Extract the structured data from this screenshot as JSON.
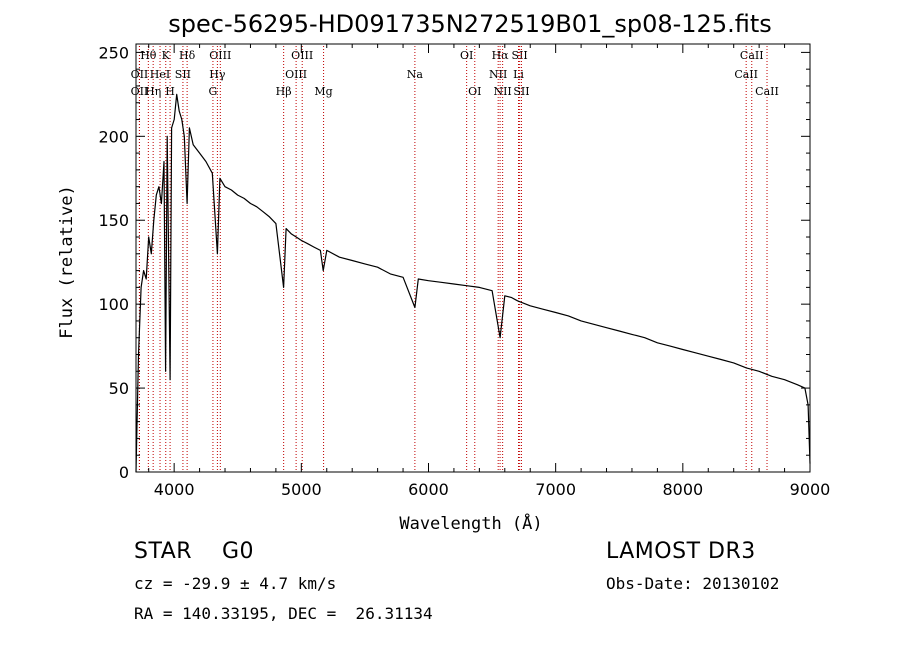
{
  "chart_data": {
    "type": "line",
    "title": "spec-56295-HD091735N272519B01_sp08-125.fits",
    "xlabel": "Wavelength (Å)",
    "ylabel": "Flux (relative)",
    "xlim": [
      3700,
      9000
    ],
    "ylim": [
      0,
      255
    ],
    "xticks": [
      4000,
      5000,
      6000,
      7000,
      8000,
      9000
    ],
    "yticks": [
      0,
      50,
      100,
      150,
      200,
      250
    ],
    "grid": false,
    "series": [
      {
        "name": "flux",
        "x": [
          3700,
          3720,
          3740,
          3760,
          3780,
          3800,
          3820,
          3840,
          3860,
          3880,
          3900,
          3920,
          3933,
          3945,
          3968,
          3980,
          4000,
          4020,
          4040,
          4060,
          4080,
          4102,
          4120,
          4150,
          4200,
          4250,
          4300,
          4340,
          4360,
          4400,
          4450,
          4500,
          4550,
          4600,
          4650,
          4700,
          4750,
          4800,
          4861,
          4880,
          4920,
          4960,
          5000,
          5050,
          5100,
          5150,
          5172,
          5200,
          5300,
          5400,
          5500,
          5600,
          5700,
          5800,
          5893,
          5920,
          6000,
          6100,
          6200,
          6300,
          6400,
          6500,
          6563,
          6600,
          6650,
          6700,
          6800,
          6900,
          7000,
          7100,
          7200,
          7300,
          7400,
          7500,
          7600,
          7700,
          7800,
          7900,
          8000,
          8100,
          8200,
          8300,
          8400,
          8500,
          8600,
          8700,
          8800,
          8900,
          8960,
          8985,
          9000
        ],
        "y": [
          0,
          70,
          110,
          120,
          115,
          140,
          130,
          150,
          165,
          170,
          160,
          185,
          60,
          200,
          55,
          205,
          210,
          225,
          215,
          210,
          200,
          160,
          205,
          195,
          190,
          185,
          178,
          130,
          175,
          170,
          168,
          165,
          163,
          160,
          158,
          155,
          152,
          148,
          110,
          145,
          142,
          140,
          138,
          136,
          134,
          132,
          120,
          132,
          128,
          126,
          124,
          122,
          118,
          116,
          98,
          115,
          114,
          113,
          112,
          111,
          110,
          108,
          80,
          105,
          104,
          102,
          99,
          97,
          95,
          93,
          90,
          88,
          86,
          84,
          82,
          80,
          77,
          75,
          73,
          71,
          69,
          67,
          65,
          62,
          60,
          57,
          55,
          52,
          50,
          40,
          5
        ]
      }
    ],
    "lines": [
      {
        "label": "Hθ",
        "x": 3797,
        "row": 0
      },
      {
        "label": "K",
        "x": 3934,
        "row": 0
      },
      {
        "label": "Hδ",
        "x": 4102,
        "row": 0
      },
      {
        "label": "OIII",
        "x": 4363,
        "row": 0
      },
      {
        "label": "OIII",
        "x": 5007,
        "row": 0
      },
      {
        "label": "OI",
        "x": 6300,
        "row": 0
      },
      {
        "label": "Hα",
        "x": 6563,
        "row": 0
      },
      {
        "label": "SII",
        "x": 6717,
        "row": 0
      },
      {
        "label": "CaII",
        "x": 8542,
        "row": 0
      },
      {
        "label": "OII",
        "x": 3727,
        "row": 1
      },
      {
        "label": "HeI",
        "x": 3889,
        "row": 1
      },
      {
        "label": "SII",
        "x": 4069,
        "row": 1
      },
      {
        "label": "Hγ",
        "x": 4340,
        "row": 1
      },
      {
        "label": "OIII",
        "x": 4959,
        "row": 1
      },
      {
        "label": "Na",
        "x": 5893,
        "row": 1
      },
      {
        "label": "NII",
        "x": 6548,
        "row": 1
      },
      {
        "label": "Li",
        "x": 6708,
        "row": 1
      },
      {
        "label": "CaII",
        "x": 8498,
        "row": 1
      },
      {
        "label": "OII",
        "x": 3727,
        "row": 2
      },
      {
        "label": "Hη",
        "x": 3835,
        "row": 2
      },
      {
        "label": "H",
        "x": 3968,
        "row": 2
      },
      {
        "label": "G",
        "x": 4305,
        "row": 2
      },
      {
        "label": "Hβ",
        "x": 4861,
        "row": 2
      },
      {
        "label": "Mg",
        "x": 5175,
        "row": 2
      },
      {
        "label": "OI",
        "x": 6364,
        "row": 2
      },
      {
        "label": "NII",
        "x": 6583,
        "row": 2
      },
      {
        "label": "SII",
        "x": 6731,
        "row": 2
      },
      {
        "label": "CaII",
        "x": 8662,
        "row": 2
      }
    ]
  },
  "info": {
    "class_text": "STAR    G0",
    "survey": "LAMOST DR3",
    "cz": "cz = -29.9 ± 4.7 km/s",
    "obs_date": "Obs-Date: 20130102",
    "coords": "RA = 140.33195, DEC =  26.31134"
  }
}
